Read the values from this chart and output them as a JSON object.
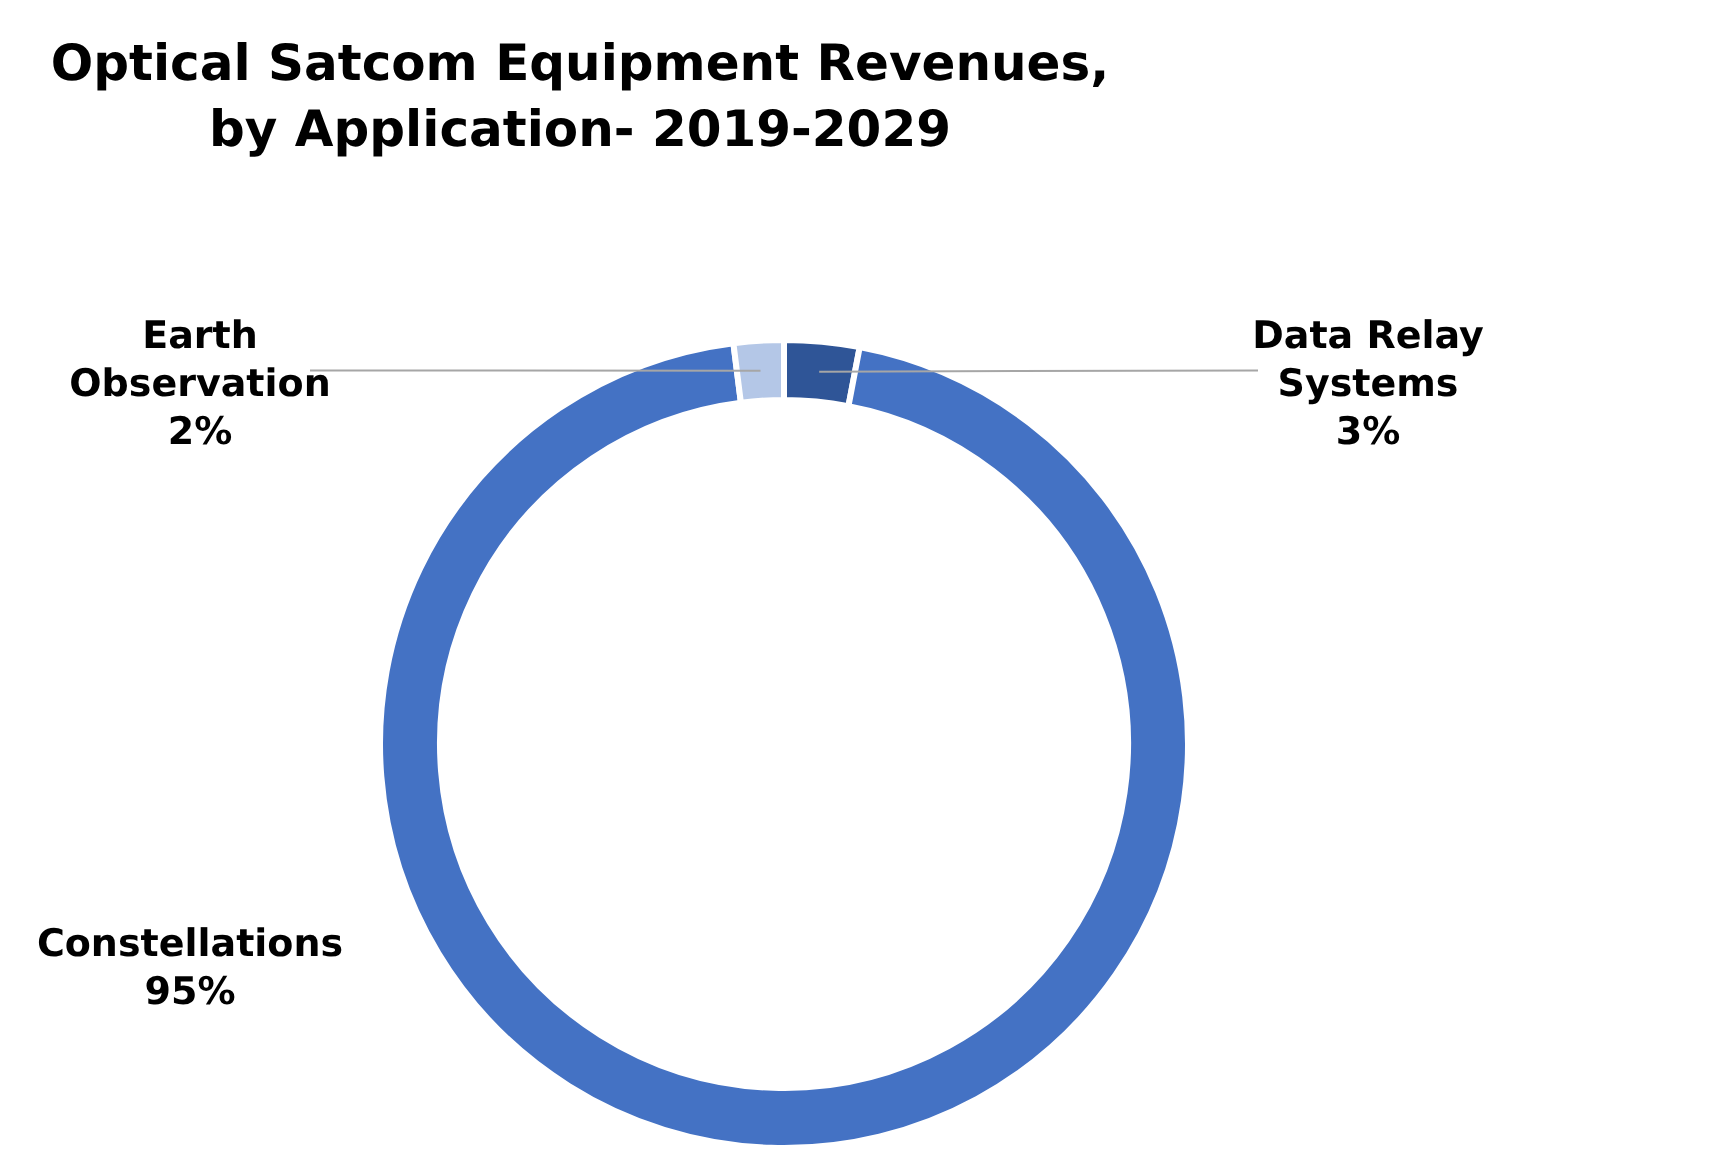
{
  "chart_data": {
    "type": "donut",
    "title": "Optical Satcom Equipment Revenues, by Application- 2019-2029",
    "categories": [
      "Data Relay Systems",
      "Constellations",
      "Earth Observation"
    ],
    "values": [
      3,
      95,
      2
    ],
    "colors": [
      "#2f5597",
      "#4472c4",
      "#b4c7e7"
    ],
    "value_labels": [
      "3%",
      "95%",
      "2%"
    ]
  }
}
